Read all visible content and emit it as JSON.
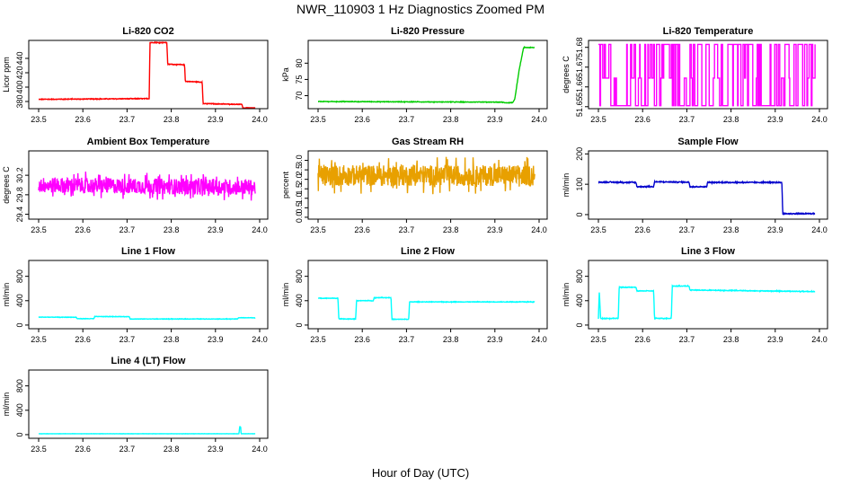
{
  "title": "NWR_110903  1 Hz Diagnostics Zoomed PM",
  "xlabel": "Hour of Day (UTC)",
  "chart_data": [
    {
      "type": "line",
      "title": "Li-820 CO2",
      "xlabel": "",
      "ylabel": "Licor ppm",
      "color": "#ff0000",
      "xlim": [
        23.5,
        24.0
      ],
      "ylim": [
        370,
        465
      ],
      "xticks": [
        "23.5",
        "23.6",
        "23.7",
        "23.8",
        "23.9",
        "24.0"
      ],
      "yticks": [
        380,
        400,
        420,
        440
      ],
      "noise": 0.8,
      "x": [
        23.5,
        23.75,
        23.752,
        23.79,
        23.792,
        23.83,
        23.832,
        23.87,
        23.872,
        23.96,
        23.962,
        23.99
      ],
      "values": [
        383,
        384,
        462,
        462,
        432,
        431,
        408,
        407,
        377,
        376,
        371,
        371
      ]
    },
    {
      "type": "line",
      "title": "Li-820 Pressure",
      "xlabel": "",
      "ylabel": "kPa",
      "color": "#00cc00",
      "xlim": [
        23.5,
        24.0
      ],
      "ylim": [
        66,
        87
      ],
      "xticks": [
        "23.5",
        "23.6",
        "23.7",
        "23.8",
        "23.9",
        "24.0"
      ],
      "yticks": [
        70,
        75,
        80
      ],
      "noise": 0.15,
      "x": [
        23.5,
        23.92,
        23.922,
        23.94,
        23.945,
        23.955,
        23.965,
        23.99
      ],
      "values": [
        68.2,
        68.0,
        67.8,
        67.8,
        69,
        78,
        84.8,
        84.8
      ]
    },
    {
      "type": "line",
      "title": "Li-820 Temperature",
      "xlabel": "",
      "ylabel": "degrees C",
      "color": "#ff00ff",
      "xlim": [
        23.5,
        24.0
      ],
      "ylim": [
        51.649,
        51.6835
      ],
      "xticks": [
        "23.5",
        "23.6",
        "23.7",
        "23.8",
        "23.9",
        "24.0"
      ],
      "yticks": [
        "51.65",
        "51.66",
        "51.67",
        "51.68"
      ],
      "pattern": "binary",
      "levels": [
        51.6505,
        51.6645,
        51.6815
      ]
    },
    {
      "type": "line",
      "title": "Ambient Box Temperature",
      "xlabel": "",
      "ylabel": "degrees C",
      "color": "#ff00ff",
      "xlim": [
        23.5,
        24.0
      ],
      "ylim": [
        29.3,
        30.7
      ],
      "xticks": [
        "23.5",
        "23.6",
        "23.7",
        "23.8",
        "23.9",
        "24.0"
      ],
      "yticks": [
        "29.4",
        "29.8",
        "30.2"
      ],
      "noise": 0.32,
      "x": [
        23.5,
        23.99
      ],
      "values": [
        30.0,
        29.95
      ]
    },
    {
      "type": "line",
      "title": "Gas Stream RH",
      "xlabel": "",
      "ylabel": "percent",
      "color": "#e8a000",
      "xlim": [
        23.5,
        24.0
      ],
      "ylim": [
        -0.1,
        3.5
      ],
      "xticks": [
        "23.5",
        "23.6",
        "23.7",
        "23.8",
        "23.9",
        "24.0"
      ],
      "yticks": [
        "0.0",
        "0.5",
        "1.0",
        "1.5",
        "2.0",
        "2.5",
        "3.0"
      ],
      "noise": 1.1,
      "x": [
        23.5,
        23.99
      ],
      "values": [
        2.2,
        2.2
      ]
    },
    {
      "type": "line",
      "title": "Sample Flow",
      "xlabel": "",
      "ylabel": "ml/min",
      "color": "#0000cc",
      "xlim": [
        23.5,
        24.0
      ],
      "ylim": [
        -15,
        210
      ],
      "xticks": [
        "23.5",
        "23.6",
        "23.7",
        "23.8",
        "23.9",
        "24.0"
      ],
      "yticks": [
        0,
        100,
        200
      ],
      "noise": 3,
      "x": [
        23.5,
        23.585,
        23.587,
        23.625,
        23.627,
        23.705,
        23.707,
        23.745,
        23.747,
        23.915,
        23.917,
        23.99
      ],
      "values": [
        107,
        106,
        92,
        92,
        108,
        107,
        92,
        92,
        106,
        106,
        3,
        3
      ]
    },
    {
      "type": "line",
      "title": "Line 1 Flow",
      "xlabel": "",
      "ylabel": "ml/min",
      "color": "#00ffff",
      "xlim": [
        23.5,
        24.0
      ],
      "ylim": [
        -60,
        1060
      ],
      "xticks": [
        "23.5",
        "23.6",
        "23.7",
        "23.8",
        "23.9",
        "24.0"
      ],
      "yticks": [
        0,
        400,
        800
      ],
      "noise": 6,
      "x": [
        23.5,
        23.585,
        23.587,
        23.625,
        23.627,
        23.705,
        23.707,
        23.95,
        23.952,
        23.99
      ],
      "values": [
        130,
        128,
        105,
        105,
        140,
        138,
        100,
        100,
        120,
        120
      ]
    },
    {
      "type": "line",
      "title": "Line 2 Flow",
      "xlabel": "",
      "ylabel": "ml/min",
      "color": "#00ffff",
      "xlim": [
        23.5,
        24.0
      ],
      "ylim": [
        -60,
        1060
      ],
      "xticks": [
        "23.5",
        "23.6",
        "23.7",
        "23.8",
        "23.9",
        "24.0"
      ],
      "yticks": [
        0,
        400,
        800
      ],
      "noise": 8,
      "x": [
        23.5,
        23.545,
        23.547,
        23.585,
        23.587,
        23.625,
        23.627,
        23.665,
        23.667,
        23.705,
        23.707,
        23.99
      ],
      "values": [
        440,
        440,
        100,
        100,
        400,
        400,
        450,
        450,
        95,
        95,
        380,
        380
      ]
    },
    {
      "type": "line",
      "title": "Line 3 Flow",
      "xlabel": "",
      "ylabel": "ml/min",
      "color": "#00ffff",
      "xlim": [
        23.5,
        24.0
      ],
      "ylim": [
        -60,
        1060
      ],
      "xticks": [
        "23.5",
        "23.6",
        "23.7",
        "23.8",
        "23.9",
        "24.0"
      ],
      "yticks": [
        0,
        400,
        800
      ],
      "noise": 10,
      "x": [
        23.5,
        23.502,
        23.505,
        23.545,
        23.547,
        23.585,
        23.587,
        23.625,
        23.627,
        23.665,
        23.667,
        23.705,
        23.707,
        23.99
      ],
      "values": [
        100,
        550,
        110,
        110,
        620,
        620,
        560,
        560,
        110,
        110,
        640,
        640,
        575,
        550
      ]
    },
    {
      "type": "line",
      "title": "Line 4 (LT) Flow",
      "xlabel": "",
      "ylabel": "ml/min",
      "color": "#00ffff",
      "xlim": [
        23.5,
        24.0
      ],
      "ylim": [
        -60,
        1060
      ],
      "xticks": [
        "23.5",
        "23.6",
        "23.7",
        "23.8",
        "23.9",
        "24.0"
      ],
      "yticks": [
        0,
        400,
        800
      ],
      "noise": 2,
      "x": [
        23.5,
        23.953,
        23.955,
        23.957,
        23.958,
        23.99
      ],
      "values": [
        15,
        15,
        130,
        130,
        15,
        15
      ]
    }
  ]
}
